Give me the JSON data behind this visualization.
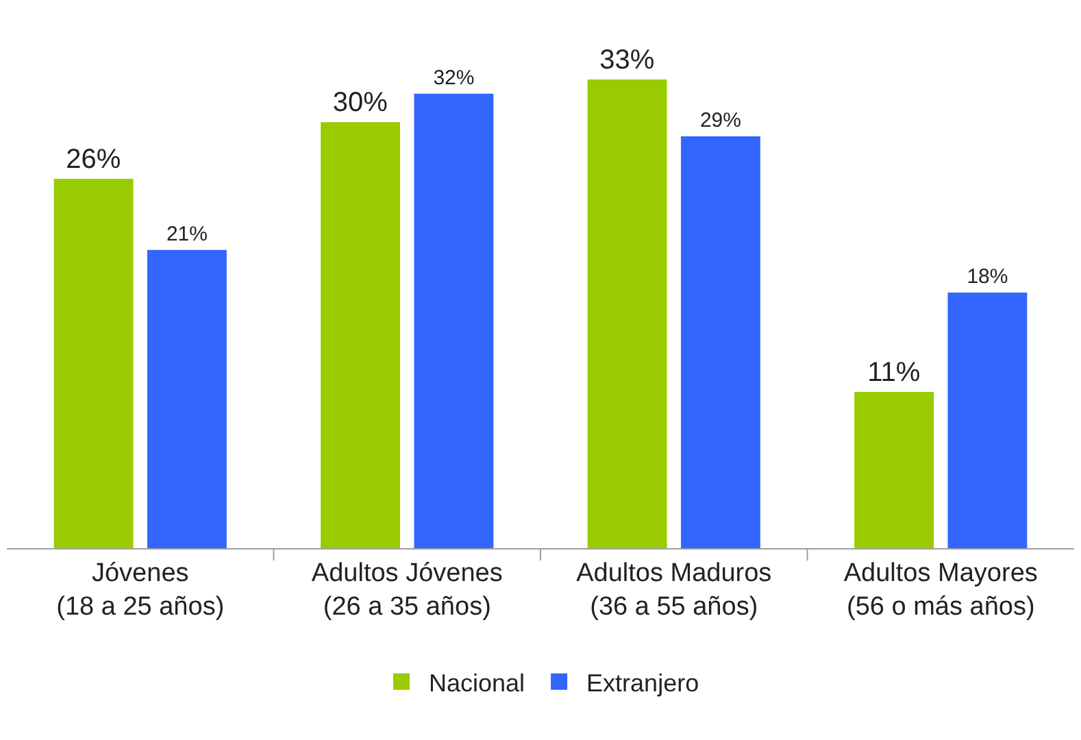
{
  "chart_data": {
    "type": "bar",
    "categories": [
      "Jóvenes\n(18 a 25 años)",
      "Adultos Jóvenes\n(26 a 35 años)",
      "Adultos Maduros\n(36 a 55 años)",
      "Adultos Mayores\n(56 o más años)"
    ],
    "series": [
      {
        "name": "Nacional",
        "color": "#99cc00",
        "values": [
          26,
          30,
          33,
          11
        ],
        "value_labels": [
          "26%",
          "30%",
          "33%",
          "11%"
        ]
      },
      {
        "name": "Extranjero",
        "color": "#3366ff",
        "values": [
          21,
          32,
          29,
          18
        ],
        "value_labels": [
          "21%",
          "32%",
          "29%",
          "18%"
        ]
      }
    ],
    "legend": "bottom"
  }
}
